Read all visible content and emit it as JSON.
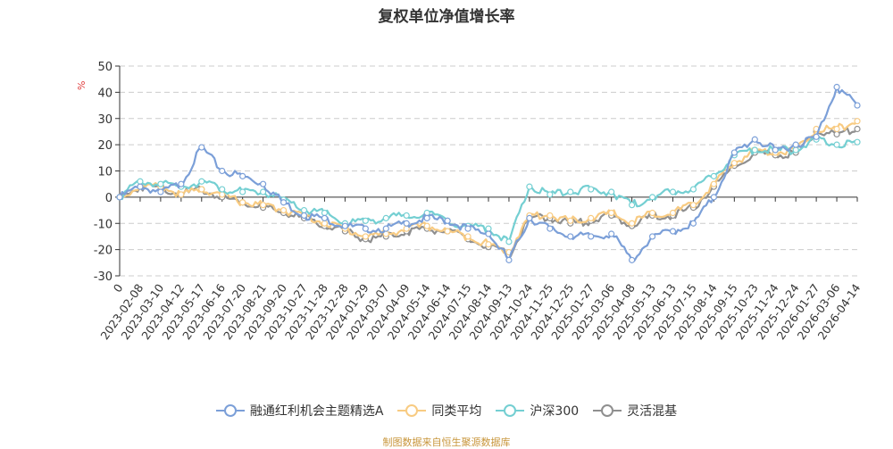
{
  "chart_data": {
    "type": "line",
    "title": "复权单位净值增长率",
    "ylabel": "%",
    "xlabel": "",
    "ylim": [
      -30,
      50
    ],
    "yticks": [
      50,
      40,
      30,
      20,
      10,
      0,
      -10,
      -20,
      -30
    ],
    "grid": true,
    "legend_position": "bottom",
    "x": [
      "0",
      "2023-02-08",
      "2023-03-10",
      "2023-04-12",
      "2023-05-17",
      "2023-06-16",
      "2023-07-20",
      "2023-08-21",
      "2023-09-20",
      "2023-10-27",
      "2023-11-28",
      "2023-12-28",
      "2024-01-29",
      "2024-03-07",
      "2024-04-09",
      "2024-05-14",
      "2024-06-14",
      "2024-07-15",
      "2024-08-14",
      "2024-09-13",
      "2024-10-24",
      "2024-11-25",
      "2024-12-25",
      "2025-01-27",
      "2025-03-06",
      "2025-04-08",
      "2025-05-13",
      "2025-06-13",
      "2025-07-15",
      "2025-08-14",
      "2025-09-15",
      "2025-10-23",
      "2025-11-24",
      "2025-12-24",
      "2026-01-27",
      "2026-03-06",
      "2026-04-14"
    ],
    "series": [
      {
        "name": "融通红利机会主题精选A",
        "color": "#7b9fd8",
        "values": [
          0,
          4,
          2,
          5,
          19,
          10,
          8,
          5,
          -2,
          -7,
          -8,
          -11,
          -12,
          -12,
          -10,
          -8,
          -9,
          -12,
          -14,
          -24,
          -8,
          -12,
          -15,
          -15,
          -14,
          -24,
          -15,
          -13,
          -10,
          0,
          17,
          22,
          18,
          20,
          23,
          42,
          35
        ]
      },
      {
        "name": "同类平均",
        "color": "#f8cb82",
        "values": [
          0,
          4,
          4,
          1,
          3,
          1,
          -2,
          -3,
          -5,
          -7,
          -10,
          -12,
          -15,
          -14,
          -12,
          -11,
          -13,
          -15,
          -18,
          -21,
          -7,
          -7,
          -9,
          -8,
          -6,
          -10,
          -6,
          -6,
          -3,
          5,
          13,
          18,
          17,
          18,
          26,
          26,
          29
        ]
      },
      {
        "name": "沪深300",
        "color": "#74cfd2",
        "values": [
          0,
          6,
          5,
          4,
          6,
          3,
          2,
          2,
          -1,
          -5,
          -6,
          -10,
          -9,
          -8,
          -7,
          -6,
          -9,
          -11,
          -12,
          -17,
          4,
          1,
          2,
          3,
          2,
          -3,
          0,
          2,
          3,
          8,
          16,
          18,
          18,
          18,
          22,
          20,
          21
        ]
      },
      {
        "name": "灵活混基",
        "color": "#8f8f8f",
        "values": [
          0,
          4,
          4,
          1,
          3,
          0,
          -2,
          -4,
          -6,
          -8,
          -11,
          -13,
          -16,
          -15,
          -13,
          -12,
          -13,
          -16,
          -19,
          -22,
          -8,
          -8,
          -10,
          -9,
          -7,
          -11,
          -7,
          -7,
          -4,
          4,
          12,
          17,
          16,
          17,
          25,
          24,
          26
        ]
      }
    ]
  },
  "header": {
    "title": "复权单位净值增长率"
  },
  "axis": {
    "unit_label": "%"
  },
  "legend": {
    "items": [
      {
        "label": "融通红利机会主题精选A",
        "color": "#7b9fd8"
      },
      {
        "label": "同类平均",
        "color": "#f8cb82"
      },
      {
        "label": "沪深300",
        "color": "#74cfd2"
      },
      {
        "label": "灵活混基",
        "color": "#8f8f8f"
      }
    ]
  },
  "footer": {
    "source": "制图数据来自恒生聚源数据库"
  }
}
